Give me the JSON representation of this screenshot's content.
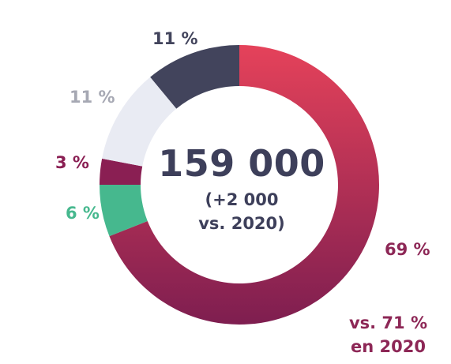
{
  "chart_data": {
    "type": "pie",
    "title": "",
    "center": {
      "total": "159 000",
      "change_line1": "(+2 000",
      "change_line2": "vs. 2020)"
    },
    "slices": [
      {
        "value": 69,
        "label": "69 %",
        "color_start": "#e5425a",
        "color_end": "#7e1e50",
        "label_color": "#8d2756"
      },
      {
        "value": 6,
        "label": "6 %",
        "color": "#46b88e",
        "label_color": "#46b88e"
      },
      {
        "value": 3,
        "label": "3 %",
        "color": "#8a1f53",
        "label_color": "#8a1f53"
      },
      {
        "value": 11,
        "label": "11 %",
        "color": "#e9ebf3",
        "label_color": "#a6a8b3"
      },
      {
        "value": 11,
        "label": "11 %",
        "color": "#42445c",
        "label_color": "#42445c"
      }
    ],
    "note_line1": "vs. 71 %",
    "note_line2": "en 2020"
  }
}
